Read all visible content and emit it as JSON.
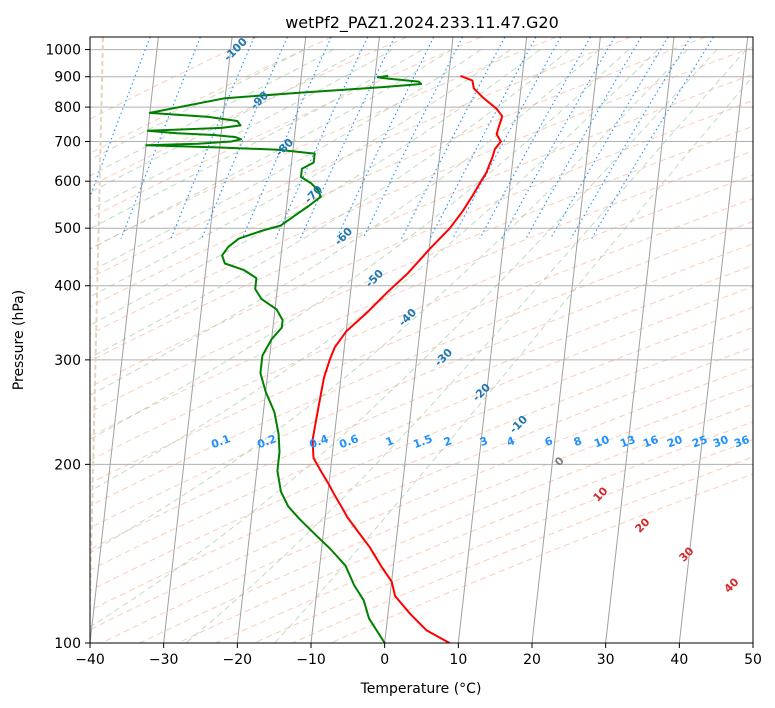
{
  "chart_data": {
    "type": "line",
    "title": "wetPf2_PAZ1.2024.233.11.47.G20",
    "xlabel": "Temperature (°C)",
    "ylabel": "Pressure (hPa)",
    "xlim": [
      -40,
      50
    ],
    "ylim": [
      1050,
      100
    ],
    "y_scale": "log",
    "grid": true,
    "x_ticks": [
      -40,
      -30,
      -20,
      -10,
      0,
      10,
      20,
      30,
      40,
      50
    ],
    "x_tick_labels": [
      "−40",
      "−30",
      "−20",
      "−10",
      "0",
      "10",
      "20",
      "30",
      "40",
      "50"
    ],
    "y_ticks": [
      1000,
      900,
      800,
      700,
      600,
      500,
      400,
      300,
      200,
      100
    ],
    "y_tick_labels": [
      "1000",
      "900",
      "800",
      "700",
      "600",
      "500",
      "400",
      "300",
      "200",
      "100"
    ],
    "colors": {
      "temperature": "#ff0000",
      "dewpoint": "#008000",
      "isotherm_labels": "#1f77b4",
      "mixing_ratio": "#1e90ff",
      "moist_adiabat_labels": "#d62728",
      "moist_adiabat_zero": "#808080"
    },
    "series": [
      {
        "role": "temperature",
        "points": [
          [
            1.6,
            903
          ],
          [
            3.3,
            887
          ],
          [
            3.6,
            860
          ],
          [
            5.0,
            830
          ],
          [
            7.0,
            795
          ],
          [
            7.9,
            772
          ],
          [
            7.6,
            742
          ],
          [
            7.4,
            720
          ],
          [
            8.1,
            700
          ],
          [
            7.4,
            680
          ],
          [
            7.2,
            660
          ],
          [
            6.9,
            640
          ],
          [
            6.6,
            620
          ],
          [
            6.0,
            600
          ],
          [
            5.0,
            565
          ],
          [
            4.0,
            535
          ],
          [
            2.5,
            500
          ],
          [
            0.0,
            460
          ],
          [
            -2.5,
            420
          ],
          [
            -5.0,
            390
          ],
          [
            -7.5,
            360
          ],
          [
            -10.0,
            335
          ],
          [
            -11.3,
            315
          ],
          [
            -11.8,
            300
          ],
          [
            -12.3,
            280
          ],
          [
            -12.5,
            260
          ],
          [
            -12.7,
            240
          ],
          [
            -12.9,
            220
          ],
          [
            -12.5,
            205
          ],
          [
            -11.3,
            195
          ],
          [
            -10.0,
            185
          ],
          [
            -9.0,
            177
          ],
          [
            -8.0,
            170
          ],
          [
            -7.0,
            163
          ],
          [
            -5.5,
            155
          ],
          [
            -3.5,
            145
          ],
          [
            -1.5,
            134
          ],
          [
            0.0,
            127
          ],
          [
            0.7,
            120
          ],
          [
            3.0,
            112
          ],
          [
            5.5,
            105
          ],
          [
            8.8,
            100
          ]
        ]
      },
      {
        "role": "dewpoint",
        "points": [
          [
            -8.2,
            903
          ],
          [
            -9.6,
            898
          ],
          [
            -8.0,
            893
          ],
          [
            -4.0,
            883
          ],
          [
            -3.6,
            875
          ],
          [
            -10.0,
            862
          ],
          [
            -20.0,
            846
          ],
          [
            -30.0,
            828
          ],
          [
            -40.0,
            782
          ],
          [
            -32.0,
            770
          ],
          [
            -28.0,
            758
          ],
          [
            -27.5,
            745
          ],
          [
            -30.0,
            738
          ],
          [
            -36.0,
            733
          ],
          [
            -40.0,
            730
          ],
          [
            -36.0,
            723
          ],
          [
            -31.0,
            718
          ],
          [
            -28.0,
            712
          ],
          [
            -27.2,
            706
          ],
          [
            -28.5,
            700
          ],
          [
            -33.0,
            694
          ],
          [
            -40.0,
            690
          ],
          [
            -30.0,
            684
          ],
          [
            -22.0,
            678
          ],
          [
            -17.0,
            668
          ],
          [
            -17.0,
            645
          ],
          [
            -18.5,
            630
          ],
          [
            -18.5,
            610
          ],
          [
            -17.0,
            595
          ],
          [
            -16.0,
            580
          ],
          [
            -15.5,
            565
          ],
          [
            -17.0,
            545
          ],
          [
            -19.0,
            522
          ],
          [
            -20.5,
            505
          ],
          [
            -23.0,
            495
          ],
          [
            -26.0,
            480
          ],
          [
            -27.3,
            465
          ],
          [
            -28.0,
            450
          ],
          [
            -27.5,
            436
          ],
          [
            -24.8,
            425
          ],
          [
            -23.0,
            412
          ],
          [
            -23.0,
            395
          ],
          [
            -22.0,
            380
          ],
          [
            -19.8,
            365
          ],
          [
            -18.8,
            350
          ],
          [
            -18.8,
            340
          ],
          [
            -20.0,
            325
          ],
          [
            -21.0,
            305
          ],
          [
            -21.0,
            285
          ],
          [
            -20.0,
            265
          ],
          [
            -18.5,
            245
          ],
          [
            -17.6,
            225
          ],
          [
            -17.2,
            210
          ],
          [
            -17.2,
            195
          ],
          [
            -16.4,
            180
          ],
          [
            -15.2,
            170
          ],
          [
            -13.5,
            162
          ],
          [
            -11.0,
            152
          ],
          [
            -8.8,
            144
          ],
          [
            -6.5,
            135
          ],
          [
            -5.0,
            125
          ],
          [
            -3.5,
            118
          ],
          [
            -2.5,
            110
          ],
          [
            0.0,
            100
          ]
        ]
      }
    ],
    "isotherm_labels": [
      "-100",
      "-90",
      "-80",
      "-70",
      "-60",
      "-50",
      "-40",
      "-30",
      "-20",
      "-10"
    ],
    "mixing_ratio_labels": [
      "0.1",
      "0.2",
      "0.4",
      "0.6",
      "1",
      "1.5",
      "2",
      "3",
      "4",
      "6",
      "8",
      "10",
      "13",
      "16",
      "20",
      "25",
      "30",
      "36"
    ],
    "moist_adiabat_labels": [
      "0",
      "10",
      "20",
      "30",
      "40"
    ]
  }
}
